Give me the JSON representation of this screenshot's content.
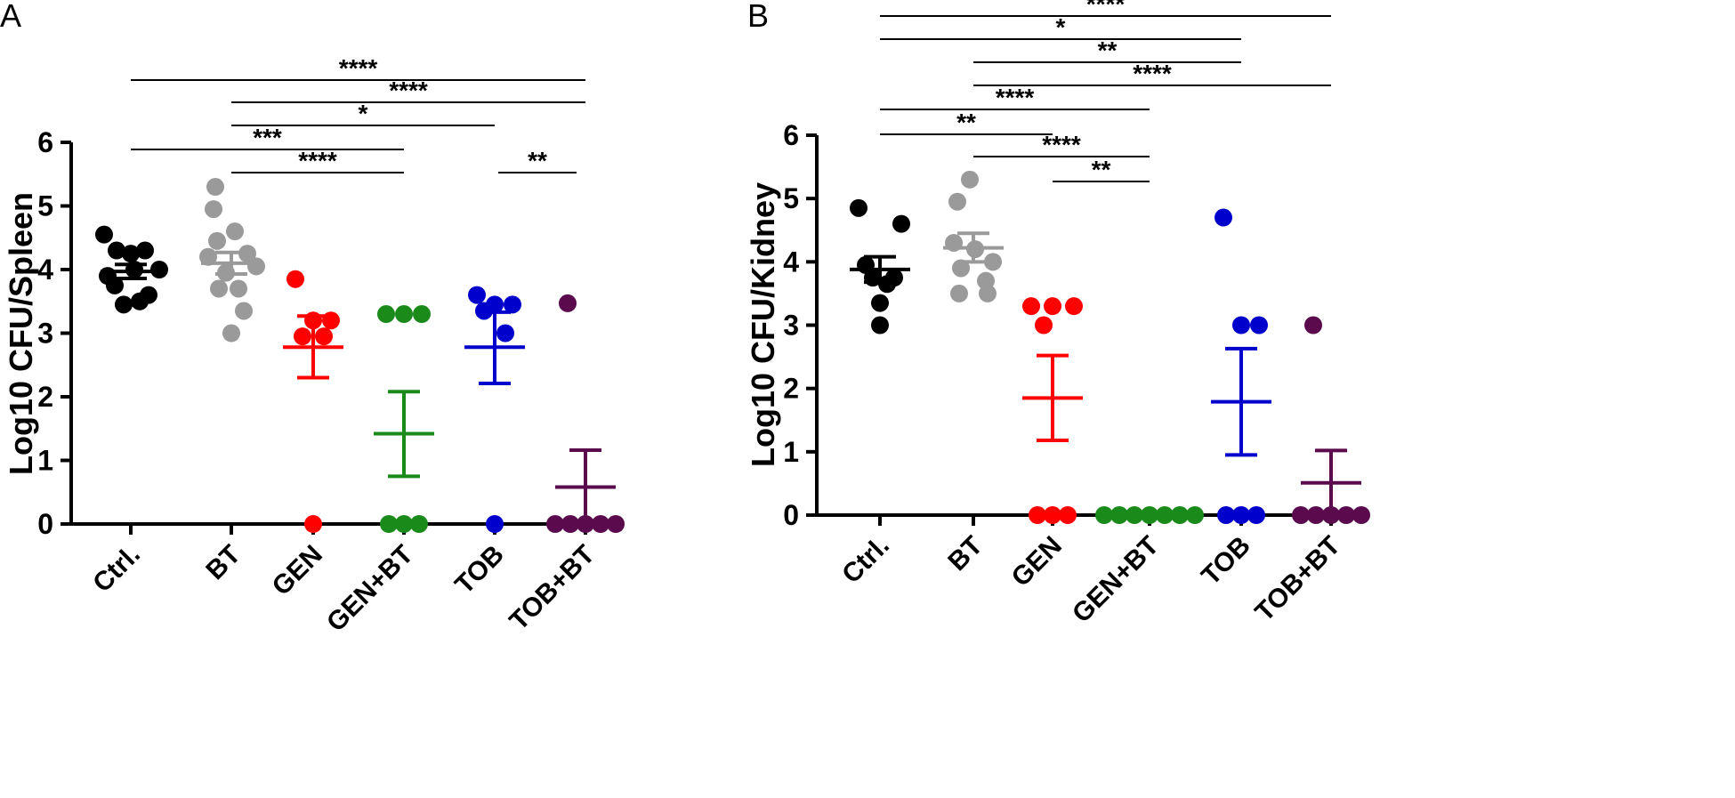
{
  "chart_data": [
    {
      "type": "scatter",
      "panel_label": "A",
      "title": "",
      "xlabel": "",
      "ylabel": "Log10 CFU/Spleen",
      "ylim": [
        0,
        6
      ],
      "yticks": [
        "0",
        "1",
        "2",
        "3",
        "4",
        "5",
        "6"
      ],
      "categories": [
        "Ctrl.",
        "BT",
        "GEN",
        "GEN+BT",
        "TOB",
        "TOB+BT"
      ],
      "colors": [
        "#000000",
        "#9a9a9a",
        "#ff0000",
        "#1a8a1a",
        "#0000cc",
        "#5c0a4e"
      ],
      "points": [
        [
          4.55,
          4.3,
          4.25,
          4.3,
          4.0,
          3.9,
          4.0,
          3.75,
          3.6,
          3.45,
          3.5
        ],
        [
          5.3,
          4.95,
          4.6,
          4.45,
          4.25,
          4.2,
          4.05,
          3.95,
          3.7,
          3.7,
          3.35,
          3.0
        ],
        [
          3.85,
          3.2,
          3.2,
          2.95,
          2.95,
          0.0
        ],
        [
          3.3,
          3.3,
          3.3,
          0.0,
          0.0,
          0.0
        ],
        [
          3.6,
          3.45,
          3.45,
          3.35,
          3.0,
          0.0
        ],
        [
          3.47,
          0.0,
          0.0,
          0.0,
          0.0,
          0.0
        ]
      ],
      "mean": [
        3.97,
        4.1,
        2.78,
        1.42,
        2.78,
        0.58
      ],
      "sem_low": [
        3.86,
        3.93,
        2.3,
        0.75,
        2.21,
        0.0
      ],
      "sem_high": [
        4.08,
        4.27,
        3.27,
        2.08,
        3.33,
        1.16
      ],
      "significance": [
        {
          "from": "Ctrl.",
          "to": "TOB+BT",
          "label": "****"
        },
        {
          "from": "BT",
          "to": "TOB+BT",
          "label": "****"
        },
        {
          "from": "BT",
          "to": "TOB",
          "label": "*"
        },
        {
          "from": "Ctrl.",
          "to": "GEN+BT",
          "label": "***"
        },
        {
          "from": "BT",
          "to": "GEN+BT",
          "label": "****"
        },
        {
          "from": "TOB",
          "to": "TOB+BT",
          "label": "**"
        }
      ]
    },
    {
      "type": "scatter",
      "panel_label": "B",
      "title": "",
      "xlabel": "",
      "ylabel": "Log10 CFU/Kidney",
      "ylim": [
        0,
        6
      ],
      "yticks": [
        "0",
        "1",
        "2",
        "3",
        "4",
        "5",
        "6"
      ],
      "categories": [
        "Ctrl.",
        "BT",
        "GEN",
        "GEN+BT",
        "TOB",
        "TOB+BT"
      ],
      "colors": [
        "#000000",
        "#9a9a9a",
        "#ff0000",
        "#1a8a1a",
        "#0000cc",
        "#5c0a4e"
      ],
      "points": [
        [
          4.85,
          4.6,
          3.95,
          3.75,
          3.75,
          3.65,
          3.35,
          3.0
        ],
        [
          5.3,
          4.95,
          4.3,
          4.2,
          4.0,
          3.9,
          3.7,
          3.5,
          3.5
        ],
        [
          3.3,
          3.3,
          3.3,
          3.0,
          0.0,
          0.0,
          0.0
        ],
        [
          0.0,
          0.0,
          0.0,
          0.0,
          0.0,
          0.0,
          0.0
        ],
        [
          4.7,
          3.0,
          3.0,
          0.0,
          0.0,
          0.0
        ],
        [
          3.0,
          0.0,
          0.0,
          0.0,
          0.0,
          0.0
        ]
      ],
      "mean": [
        3.88,
        4.22,
        1.85,
        0.0,
        1.79,
        0.51
      ],
      "sem_low": [
        3.68,
        4.0,
        1.18,
        0.0,
        0.95,
        0.0
      ],
      "sem_high": [
        4.08,
        4.45,
        2.52,
        0.0,
        2.63,
        1.02
      ],
      "significance": [
        {
          "from": "Ctrl.",
          "to": "TOB+BT",
          "label": "****"
        },
        {
          "from": "Ctrl.",
          "to": "TOB",
          "label": "*"
        },
        {
          "from": "BT",
          "to": "TOB",
          "label": "**"
        },
        {
          "from": "BT",
          "to": "TOB+BT",
          "label": "****"
        },
        {
          "from": "Ctrl.",
          "to": "GEN+BT",
          "label": "****"
        },
        {
          "from": "Ctrl.",
          "to": "GEN",
          "label": "**"
        },
        {
          "from": "BT",
          "to": "GEN+BT",
          "label": "****"
        },
        {
          "from": "GEN",
          "to": "GEN+BT",
          "label": "**"
        }
      ]
    }
  ]
}
